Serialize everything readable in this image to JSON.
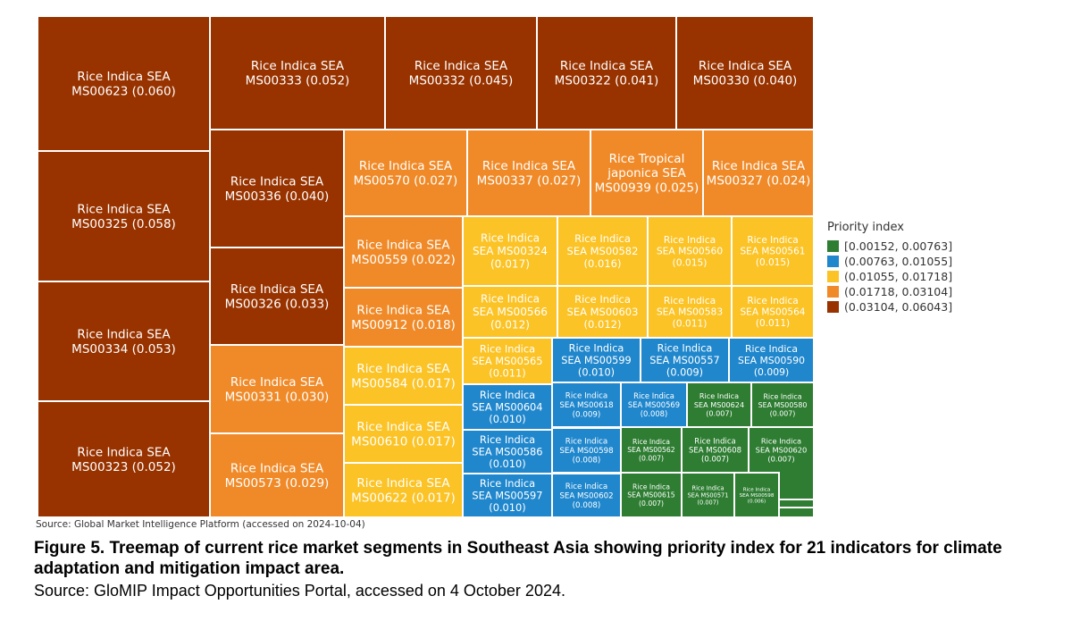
{
  "chart_data": {
    "type": "treemap",
    "legend": {
      "title": "Priority index",
      "position": "right",
      "bins": [
        {
          "label": "[0.00152, 0.00763]",
          "color": "#2e7d32"
        },
        {
          "label": "(0.00763, 0.01055]",
          "color": "#2087cd"
        },
        {
          "label": "(0.01055, 0.01718]",
          "color": "#fbc325"
        },
        {
          "label": "(0.01718, 0.03104]",
          "color": "#f08a28"
        },
        {
          "label": "(0.03104, 0.06043]",
          "color": "#983300"
        }
      ]
    },
    "items": [
      {
        "label": "Rice Indica SEA MS00623 (0.060)",
        "value": 0.06,
        "bin": 4
      },
      {
        "label": "Rice Indica SEA MS00325 (0.058)",
        "value": 0.058,
        "bin": 4
      },
      {
        "label": "Rice Indica SEA MS00334 (0.053)",
        "value": 0.053,
        "bin": 4
      },
      {
        "label": "Rice Indica SEA MS00323 (0.052)",
        "value": 0.052,
        "bin": 4
      },
      {
        "label": "Rice Indica SEA MS00333 (0.052)",
        "value": 0.052,
        "bin": 4
      },
      {
        "label": "Rice Indica SEA MS00332 (0.045)",
        "value": 0.045,
        "bin": 4
      },
      {
        "label": "Rice Indica SEA MS00322 (0.041)",
        "value": 0.041,
        "bin": 4
      },
      {
        "label": "Rice Indica SEA MS00330 (0.040)",
        "value": 0.04,
        "bin": 4
      },
      {
        "label": "Rice Indica SEA MS00336 (0.040)",
        "value": 0.04,
        "bin": 4
      },
      {
        "label": "Rice Indica SEA MS00326 (0.033)",
        "value": 0.033,
        "bin": 4
      },
      {
        "label": "Rice Indica SEA MS00331 (0.030)",
        "value": 0.03,
        "bin": 3
      },
      {
        "label": "Rice Indica SEA MS00573 (0.029)",
        "value": 0.029,
        "bin": 3
      },
      {
        "label": "Rice Indica SEA MS00570 (0.027)",
        "value": 0.027,
        "bin": 3
      },
      {
        "label": "Rice Indica SEA MS00337 (0.027)",
        "value": 0.027,
        "bin": 3
      },
      {
        "label": "Rice Tropical japonica SEA MS00939 (0.025)",
        "value": 0.025,
        "bin": 3
      },
      {
        "label": "Rice Indica SEA MS00327 (0.024)",
        "value": 0.024,
        "bin": 3
      },
      {
        "label": "Rice Indica SEA MS00559 (0.022)",
        "value": 0.022,
        "bin": 3
      },
      {
        "label": "Rice Indica SEA MS00912 (0.018)",
        "value": 0.018,
        "bin": 3
      },
      {
        "label": "Rice Indica SEA MS00584 (0.017)",
        "value": 0.017,
        "bin": 2
      },
      {
        "label": "Rice Indica SEA MS00610 (0.017)",
        "value": 0.017,
        "bin": 2
      },
      {
        "label": "Rice Indica SEA MS00622 (0.017)",
        "value": 0.017,
        "bin": 2
      },
      {
        "label": "Rice Indica SEA MS00324 (0.017)",
        "value": 0.017,
        "bin": 2
      },
      {
        "label": "Rice Indica SEA MS00582 (0.016)",
        "value": 0.016,
        "bin": 2
      },
      {
        "label": "Rice Indica SEA MS00560 (0.015)",
        "value": 0.015,
        "bin": 2
      },
      {
        "label": "Rice Indica SEA MS00561 (0.015)",
        "value": 0.015,
        "bin": 2
      },
      {
        "label": "Rice Indica SEA MS00566 (0.012)",
        "value": 0.012,
        "bin": 2
      },
      {
        "label": "Rice Indica SEA MS00603 (0.012)",
        "value": 0.012,
        "bin": 2
      },
      {
        "label": "Rice Indica SEA MS00583 (0.011)",
        "value": 0.011,
        "bin": 2
      },
      {
        "label": "Rice Indica SEA MS00564 (0.011)",
        "value": 0.011,
        "bin": 2
      },
      {
        "label": "Rice Indica SEA MS00565 (0.011)",
        "value": 0.011,
        "bin": 2
      },
      {
        "label": "Rice Indica SEA MS00599 (0.010)",
        "value": 0.01,
        "bin": 1
      },
      {
        "label": "Rice Indica SEA MS00557 (0.009)",
        "value": 0.009,
        "bin": 1
      },
      {
        "label": "Rice Indica SEA MS00590 (0.009)",
        "value": 0.009,
        "bin": 1
      },
      {
        "label": "Rice Indica SEA MS00604 (0.010)",
        "value": 0.01,
        "bin": 1
      },
      {
        "label": "Rice Indica SEA MS00618 (0.009)",
        "value": 0.009,
        "bin": 1
      },
      {
        "label": "Rice Indica SEA MS00569 (0.008)",
        "value": 0.008,
        "bin": 1
      },
      {
        "label": "Rice Indica SEA MS00624 (0.007)",
        "value": 0.007,
        "bin": 0
      },
      {
        "label": "Rice Indica SEA MS00580 (0.007)",
        "value": 0.007,
        "bin": 0
      },
      {
        "label": "Rice Indica SEA MS00586 (0.010)",
        "value": 0.01,
        "bin": 1
      },
      {
        "label": "Rice Indica SEA MS00598 (0.008)",
        "value": 0.008,
        "bin": 1
      },
      {
        "label": "Rice Indica SEA MS00562 (0.007)",
        "value": 0.007,
        "bin": 0
      },
      {
        "label": "Rice Indica SEA MS00608 (0.007)",
        "value": 0.007,
        "bin": 0
      },
      {
        "label": "Rice Indica SEA MS00620 (0.007)",
        "value": 0.007,
        "bin": 0
      },
      {
        "label": "Rice Indica SEA MS00597 (0.010)",
        "value": 0.01,
        "bin": 1
      },
      {
        "label": "Rice Indica SEA MS00602 (0.008)",
        "value": 0.008,
        "bin": 1
      },
      {
        "label": "Rice Indica SEA MS00615 (0.007)",
        "value": 0.007,
        "bin": 0
      },
      {
        "label": "Rice Indica SEA MS00571 (0.007)",
        "value": 0.007,
        "bin": 0
      },
      {
        "label": "Rice Indica SEA MS00598 (0.006)",
        "value": 0.006,
        "bin": 0
      },
      {
        "label": "",
        "value": 0.005,
        "bin": 0
      },
      {
        "label": "",
        "value": 0.004,
        "bin": 0
      },
      {
        "label": "",
        "value": 0.004,
        "bin": 0
      }
    ]
  },
  "source_small": "Source: Global Market Intelligence Platform (accessed on 2024-10-04)",
  "caption": {
    "title": "Figure 5. Treemap of current rice market segments in Southeast Asia showing priority index for 21 indicators for climate adaptation and mitigation impact area.",
    "source": "Source: GloMIP Impact Opportunities Portal, accessed on 4 October 2024."
  }
}
